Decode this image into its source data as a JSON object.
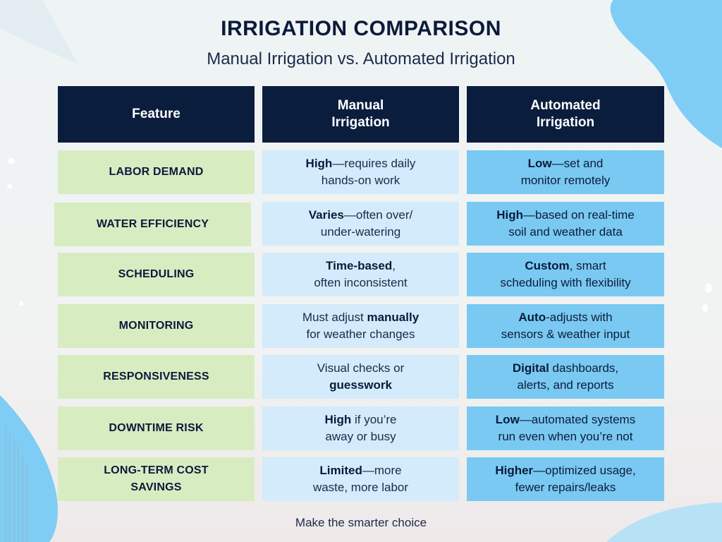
{
  "title": "IRRIGATION COMPARISON",
  "subtitle": "Manual Irrigation vs. Automated Irrigation",
  "header": {
    "feature": "Feature",
    "manual_line1": "Manual",
    "manual_line2": "Irrigation",
    "automated_line1": "Automated",
    "automated_line2": "Irrigation"
  },
  "rows": [
    {
      "feature": [
        "LABOR DEMAND"
      ],
      "manual": {
        "bold": "High",
        "rest1": "—requires daily",
        "line2": "hands-on work"
      },
      "automated": {
        "bold": "Low",
        "rest1": "—set and",
        "line2": "monitor remotely"
      }
    },
    {
      "feature": [
        "WATER EFFICIENCY"
      ],
      "manual": {
        "bold": "Varies",
        "rest1": "—often over/",
        "line2": "under-watering"
      },
      "automated": {
        "bold": "High",
        "rest1": "—based on real-time",
        "line2": "soil and weather data"
      }
    },
    {
      "feature": [
        "SCHEDULING"
      ],
      "manual": {
        "bold": "Time-based",
        "rest1": ",",
        "line2": "often inconsistent"
      },
      "automated": {
        "bold": "Custom",
        "rest1": ", smart",
        "line2": "scheduling with flexibility"
      }
    },
    {
      "feature": [
        "MONITORING"
      ],
      "manual": {
        "pre1": "Must adjust ",
        "bold": "manually",
        "line2": "for weather changes"
      },
      "automated": {
        "bold": "Auto",
        "rest1": "-adjusts with",
        "line2": "sensors & weather input"
      }
    },
    {
      "feature": [
        "RESPONSIVENESS"
      ],
      "manual": {
        "line1": "Visual checks or",
        "bold2": "guesswork"
      },
      "automated": {
        "bold": "Digital",
        "rest1": " dashboards,",
        "line2": "alerts, and reports"
      }
    },
    {
      "feature": [
        "DOWNTIME RISK"
      ],
      "manual": {
        "bold": "High",
        "rest1": " if you’re",
        "line2": "away or busy"
      },
      "automated": {
        "bold": "Low",
        "rest1": "—automated systems",
        "line2": "run even when you’re not"
      }
    },
    {
      "feature": [
        "LONG-TERM COST",
        "SAVINGS"
      ],
      "manual": {
        "bold": "Limited",
        "rest1": "—more",
        "line2": "waste, more labor"
      },
      "automated": {
        "bold": "Higher",
        "rest1": "—optimized usage,",
        "line2": "fewer repairs/leaks"
      }
    }
  ],
  "footer": "Make the smarter choice",
  "colors": {
    "header_bg": "#0b1d3d",
    "feature_bg": "#d8ecc2",
    "manual_bg": "#d3ebfa",
    "automated_bg": "#79c9f2",
    "blob": "#7fcdf4"
  }
}
